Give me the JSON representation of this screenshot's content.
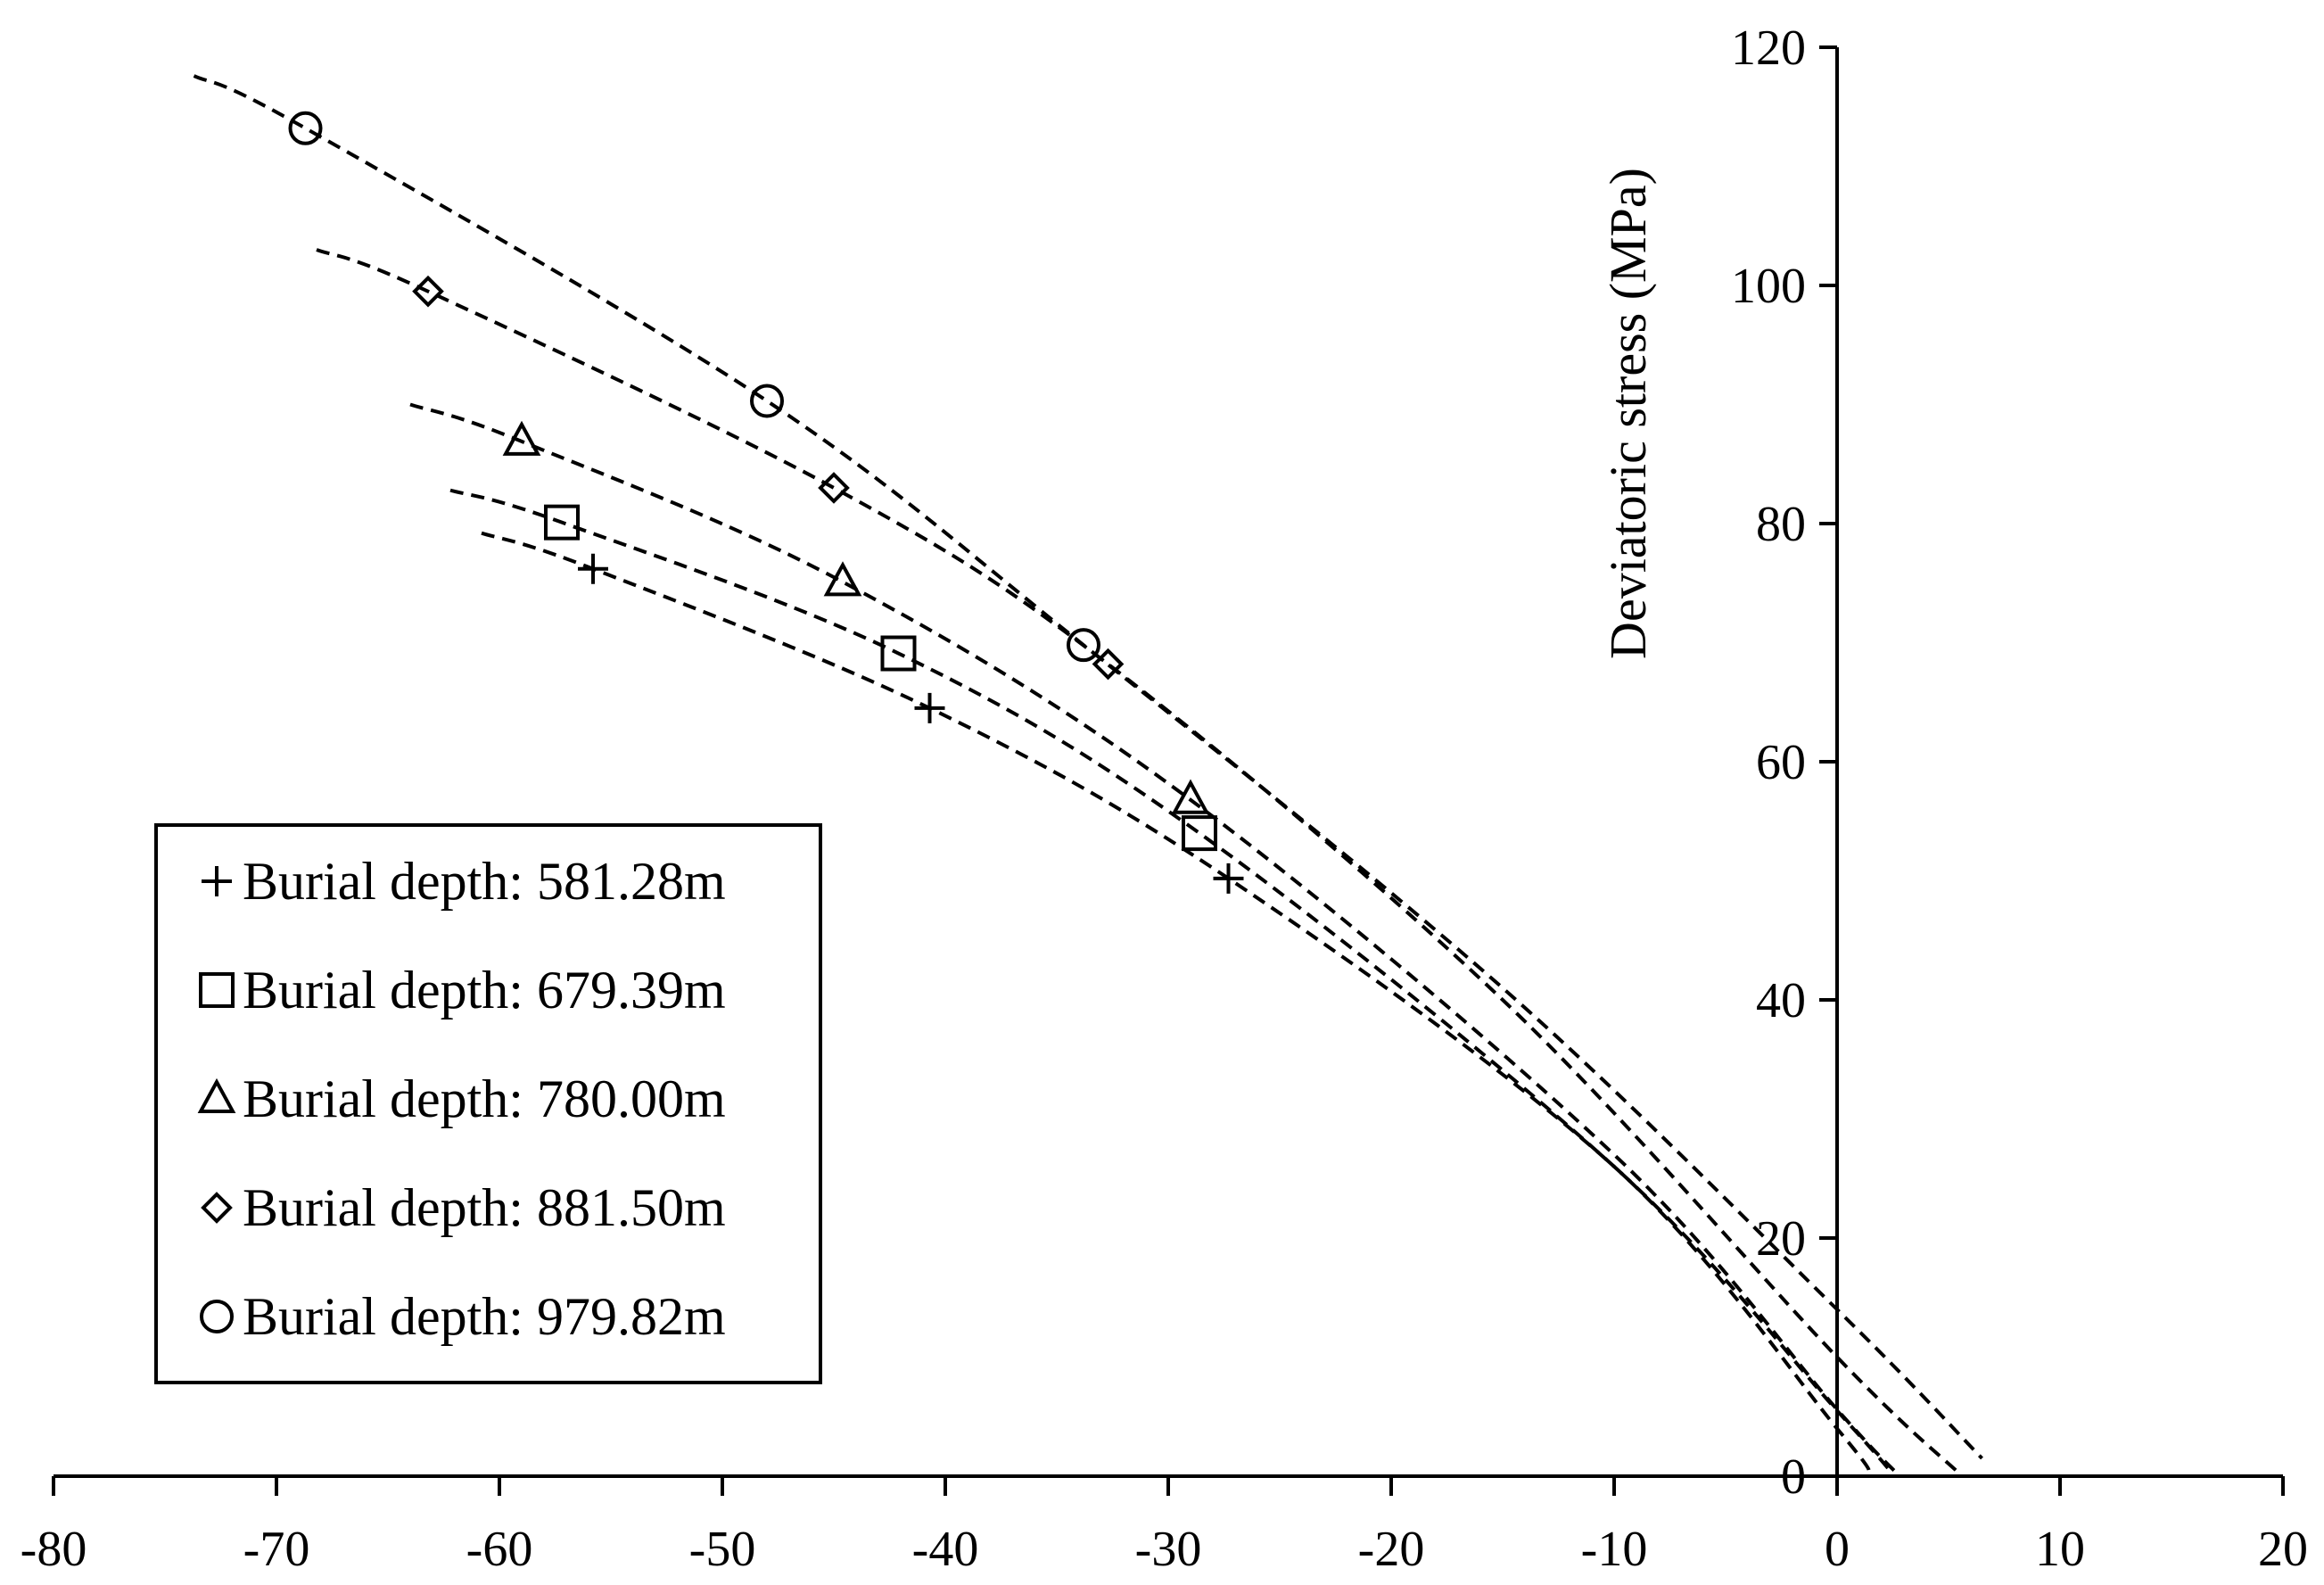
{
  "chart_data": {
    "type": "scatter",
    "title": "",
    "xlabel": "",
    "ylabel": "Deviatoric stress (MPa)",
    "xlim": [
      -80,
      20
    ],
    "ylim": [
      0,
      120
    ],
    "x_ticks": [
      -80,
      -70,
      -60,
      -50,
      -40,
      -30,
      -20,
      -10,
      0,
      10,
      20
    ],
    "y_ticks": [
      0,
      20,
      40,
      60,
      80,
      100,
      120
    ],
    "grid": false,
    "legend_position": "bottom-left",
    "series": [
      {
        "name": "Burial depth: 581.28m",
        "marker": "plus",
        "points": [
          [
            -55.8,
            76.2
          ],
          [
            -40.7,
            64.5
          ],
          [
            -27.3,
            50.2
          ]
        ],
        "trend_x": [
          -60.8,
          1.5
        ],
        "trend_curve": [
          [
            -60.8,
            79.2
          ],
          [
            -55.8,
            76.2
          ],
          [
            -40.7,
            64.5
          ],
          [
            -27.3,
            50.2
          ],
          [
            -10.0,
            26.0
          ],
          [
            0.0,
            4.0
          ],
          [
            1.5,
            0.2
          ]
        ]
      },
      {
        "name": "Burial depth: 679.39m",
        "marker": "square",
        "points": [
          [
            -57.2,
            80.1
          ],
          [
            -42.1,
            69.1
          ],
          [
            -28.6,
            54.0
          ]
        ],
        "trend_x": [
          -62.2,
          2.5
        ],
        "trend_curve": [
          [
            -62.2,
            82.8
          ],
          [
            -57.2,
            80.1
          ],
          [
            -42.1,
            69.1
          ],
          [
            -28.6,
            54.0
          ],
          [
            -10.0,
            26.0
          ],
          [
            0.0,
            5.5
          ],
          [
            2.5,
            0.2
          ]
        ]
      },
      {
        "name": "Burial depth: 780.00m",
        "marker": "triangle",
        "points": [
          [
            -59.0,
            86.9
          ],
          [
            -44.6,
            75.1
          ],
          [
            -29.0,
            56.8
          ]
        ],
        "trend_x": [
          -64.0,
          2.7
        ],
        "trend_curve": [
          [
            -64.0,
            90.0
          ],
          [
            -59.0,
            86.9
          ],
          [
            -44.6,
            75.1
          ],
          [
            -29.0,
            56.8
          ],
          [
            -10.0,
            27.0
          ],
          [
            0.0,
            5.6
          ],
          [
            2.7,
            0.2
          ]
        ]
      },
      {
        "name": "Burial depth: 881.50m",
        "marker": "diamond",
        "points": [
          [
            -63.2,
            99.5
          ],
          [
            -45.0,
            83.0
          ],
          [
            -32.7,
            68.2
          ]
        ],
        "trend_x": [
          -68.2,
          5.5
        ],
        "trend_curve": [
          [
            -68.2,
            103.0
          ],
          [
            -63.2,
            99.5
          ],
          [
            -45.0,
            83.0
          ],
          [
            -32.7,
            68.2
          ],
          [
            -15.0,
            40.0
          ],
          [
            0.0,
            10.0
          ],
          [
            5.5,
            0.2
          ]
        ]
      },
      {
        "name": "Burial depth: 979.82m",
        "marker": "circle",
        "points": [
          [
            -68.7,
            113.2
          ],
          [
            -48.0,
            90.3
          ],
          [
            -33.8,
            69.8
          ]
        ],
        "trend_x": [
          -73.7,
          6.5
        ],
        "trend_curve": [
          [
            -73.7,
            117.6
          ],
          [
            -68.7,
            113.2
          ],
          [
            -48.0,
            90.3
          ],
          [
            -33.8,
            69.8
          ],
          [
            -15.0,
            41.0
          ],
          [
            0.0,
            14.0
          ],
          [
            6.5,
            1.5
          ]
        ]
      }
    ]
  }
}
